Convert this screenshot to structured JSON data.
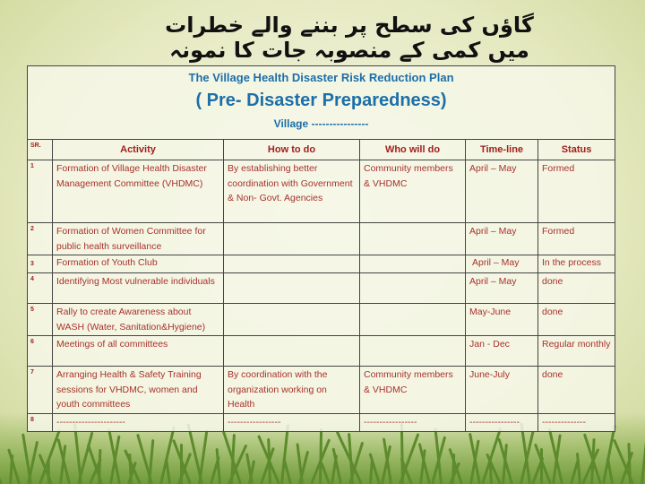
{
  "urdu_title": "گاؤں کی سطح پر بننے والے خطرات میں کمی کے منصوبہ جات کا نمونہ",
  "plan": {
    "title": "The Village Health Disaster Risk Reduction Plan",
    "subtitle": "( Pre- Disaster Preparedness)",
    "village": "Village ----------------"
  },
  "columns": [
    "SR.",
    "Activity",
    "How to do",
    "Who will do",
    "Time-line",
    "Status"
  ],
  "rows": [
    {
      "sr": "1",
      "activity": "Formation of Village Health Disaster Management Committee (VHDMC)",
      "how": "By establishing better coordination with Government & Non- Govt. Agencies",
      "who": "Community members & VHDMC",
      "time": "April – May",
      "status": "Formed"
    },
    {
      "sr": "2",
      "activity": "Formation of Women Committee for public health surveillance",
      "how": "",
      "who": "",
      "time": "April – May",
      "status": "Formed"
    },
    {
      "sr": "3",
      "activity": "Formation of Youth Club",
      "how": "",
      "who": "",
      "time": "April – May",
      "status": "In the process"
    },
    {
      "sr": "4",
      "activity": "Identifying Most vulnerable individuals",
      "how": "",
      "who": "",
      "time": "April – May",
      "status": "done"
    },
    {
      "sr": "5",
      "activity": "Rally to create Awareness about WASH (Water, Sanitation&Hygiene)",
      "how": "",
      "who": "",
      "time": "May-June",
      "status": "done"
    },
    {
      "sr": "6",
      "activity": "Meetings of all committees",
      "how": "",
      "who": "",
      "time": "Jan - Dec",
      "status": "Regular monthly"
    },
    {
      "sr": "7",
      "activity": "Arranging Health & Safety Training sessions for VHDMC, women and youth committees",
      "how": "By coordination with the organization working on Health",
      "who": "Community members & VHDMC",
      "time": "June-July",
      "status": "done"
    },
    {
      "sr": "8",
      "activity": "----------------------",
      "how": "-----------------",
      "who": "-----------------",
      "time": "----------------",
      "status": "--------------"
    }
  ]
}
